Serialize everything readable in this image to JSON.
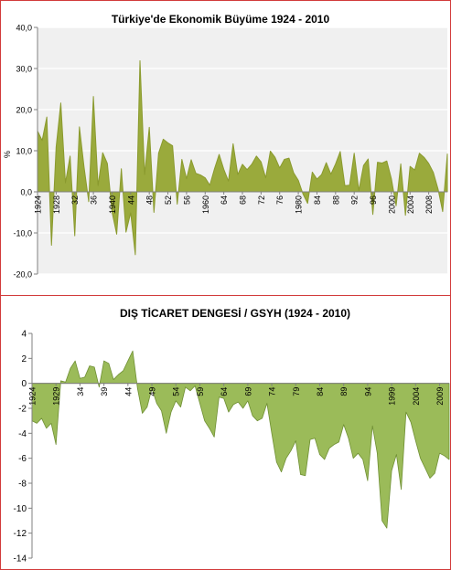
{
  "chart_data": [
    {
      "type": "area",
      "title": "Türkiye'de Ekonomik Büyüme 1924 - 2010",
      "ylabel": "%",
      "xlabel": "",
      "ylim": [
        -20,
        40
      ],
      "yticks": [
        -20,
        -10,
        0,
        10,
        20,
        30,
        40
      ],
      "ytick_labels": [
        "-20,0",
        "-10,0",
        "0,0",
        "10,0",
        "20,0",
        "30,0",
        "40,0"
      ],
      "xticks": [
        1924,
        1928,
        1932,
        1936,
        1940,
        1944,
        1948,
        1952,
        1956,
        1960,
        1964,
        1968,
        1972,
        1976,
        1980,
        1984,
        1988,
        1992,
        1996,
        2000,
        2004,
        2008
      ],
      "xtick_labels": [
        "1924",
        "1928",
        "32",
        "36",
        "1940",
        "44",
        "48",
        "52",
        "56",
        "1960",
        "64",
        "68",
        "72",
        "76",
        "1980",
        "84",
        "88",
        "92",
        "96",
        "2000",
        "2004",
        "2008"
      ],
      "grid": true,
      "colors": {
        "fill": "#9aaa3c",
        "line": "#8a9a2e",
        "plot_bg": "#f0f0f0",
        "grid": "#ffffff"
      },
      "x_start": 1924,
      "values": [
        14.8,
        12.5,
        18.2,
        -13,
        10.9,
        21.6,
        2.2,
        8.7,
        -10.7,
        15.8,
        6,
        -2.4,
        23.2,
        1.5,
        9.5,
        6.9,
        -4.9,
        -10.3,
        5.6,
        -9.8,
        -5.1,
        -15.3,
        31.9,
        4.2,
        15.7,
        -5,
        9.4,
        12.8,
        11.9,
        11.2,
        -3,
        7.9,
        3.2,
        7.8,
        4.5,
        4.1,
        3.4,
        1.6,
        5.6,
        9.1,
        5.5,
        2.6,
        11.7,
        4.2,
        6.7,
        5.4,
        6.7,
        8.7,
        7.3,
        3.4,
        9.9,
        8.4,
        5.8,
        7.9,
        8.2,
        4.6,
        2.8,
        -0.5,
        -2.8,
        4.8,
        3.1,
        4.2,
        7.1,
        4.3,
        6.8,
        9.8,
        1.5,
        1.6,
        9.4,
        0.3,
        6.4,
        8,
        -5.5,
        7.2,
        7,
        7.5,
        3.1,
        -3.4,
        6.8,
        -5.7,
        6.2,
        5.3,
        9.4,
        8.4,
        6.9,
        4.7,
        0.7,
        -4.8,
        9.2
      ],
      "annotations_x_labels_note": ""
    },
    {
      "type": "area",
      "title": "DIŞ TİCARET DENGESİ / GSYH (1924 - 2010)",
      "xlabel": "",
      "ylabel": "",
      "ylim": [
        -14,
        4
      ],
      "yticks": [
        -14,
        -12,
        -10,
        -8,
        -6,
        -4,
        -2,
        0,
        2,
        4
      ],
      "ytick_labels": [
        "-14",
        "-12",
        "-10",
        "-8",
        "-6",
        "-4",
        "-2",
        "0",
        "2",
        "4"
      ],
      "xticks": [
        1924,
        1929,
        1934,
        1939,
        1944,
        1949,
        1954,
        1959,
        1964,
        1969,
        1974,
        1979,
        1984,
        1989,
        1994,
        1999,
        2004,
        2009
      ],
      "xtick_labels": [
        "1924",
        "1929",
        "34",
        "39",
        "44",
        "49",
        "54",
        "59",
        "64",
        "69",
        "74",
        "79",
        "84",
        "89",
        "94",
        "1999",
        "2004",
        "2009"
      ],
      "grid": false,
      "colors": {
        "fill": "#9bbb59",
        "line": "#6f8f34",
        "plot_bg": "#ffffff",
        "axis": "#808080"
      },
      "x_start": 1924,
      "values": [
        -3,
        -3.2,
        -2.8,
        -3.6,
        -3.2,
        -4.9,
        0.2,
        0.1,
        1.2,
        1.8,
        0.4,
        0.5,
        1.4,
        1.3,
        -0.3,
        1.8,
        1.6,
        0.3,
        0.7,
        1,
        1.8,
        2.6,
        -0.4,
        -2.4,
        -1.9,
        -0.4,
        -1.6,
        -2.2,
        -4,
        -2.3,
        -1.4,
        -1.9,
        -0.3,
        -0.6,
        -0.2,
        -1.6,
        -3,
        -3.6,
        -4.3,
        -1.1,
        -1.2,
        -2.3,
        -1.7,
        -1.5,
        -2,
        -1.4,
        -2.6,
        -3,
        -2.8,
        -1.6,
        -4,
        -6.3,
        -7.1,
        -6,
        -5.4,
        -4.6,
        -7.3,
        -7.4,
        -4.5,
        -4.4,
        -5.7,
        -6.1,
        -5.2,
        -4.9,
        -4.7,
        -3.3,
        -4.4,
        -6,
        -5.6,
        -6.1,
        -7.8,
        -3.4,
        -5.6,
        -11,
        -11.6,
        -7,
        -5.7,
        -8.5,
        -2.3,
        -3.1,
        -4.6,
        -6,
        -6.8,
        -7.6,
        -7.2,
        -5.6,
        -5.8,
        -6.1
      ]
    }
  ]
}
